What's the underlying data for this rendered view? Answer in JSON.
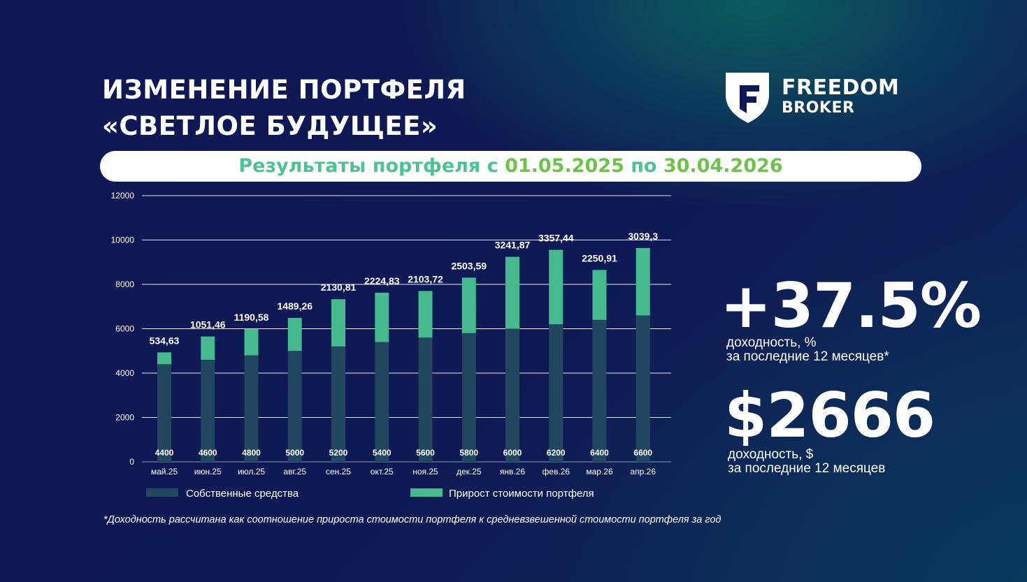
{
  "header": {
    "title_line1": "ИЗМЕНЕНИЕ ПОРТФЕЛЯ",
    "title_line2": "«СВЕТЛОЕ БУДУЩЕЕ»"
  },
  "logo": {
    "line1": "FREEDOM",
    "line2": "BROKER"
  },
  "banner": {
    "prefix": "Результаты портфеля с ",
    "date_from": "01.05.2025",
    "middle": " по ",
    "date_to": "30.04.2026"
  },
  "kpi": {
    "pct_value": "+37.5%",
    "pct_caption_line1": "доходность, %",
    "pct_caption_line2": "за последние 12 месяцев*",
    "usd_value": "$2666",
    "usd_caption_line1": "доходность, $",
    "usd_caption_line2": "за последние 12 месяцев"
  },
  "footnote": "*Доходность рассчитана как соотношение прироста стоимости портфеля к средневзвешенной стоимости портфеля за год",
  "colors": {
    "own_funds": "#22465f",
    "growth": "#47b98f",
    "banner_text": "#4fc195",
    "banner_accent": "#6dc24a"
  },
  "chart_data": {
    "type": "bar",
    "stacked": true,
    "categories": [
      "май.25",
      "июн.25",
      "июл.25",
      "авг.25",
      "сен.25",
      "окт.25",
      "ноя.25",
      "дек.25",
      "янв.26",
      "фев.26",
      "мар.26",
      "апр.26"
    ],
    "series": [
      {
        "name": "Собственные средства",
        "values": [
          4400,
          4600,
          4800,
          5000,
          5200,
          5400,
          5600,
          5800,
          6000,
          6200,
          6400,
          6600
        ],
        "labels": [
          "4400",
          "4600",
          "4800",
          "5000",
          "5200",
          "5400",
          "5600",
          "5800",
          "6000",
          "6200",
          "6400",
          "6600"
        ]
      },
      {
        "name": "Прирост стоимости портфеля",
        "values": [
          534.63,
          1051.46,
          1190.58,
          1489.26,
          2130.81,
          2224.83,
          2103.72,
          2503.59,
          3241.87,
          3357.44,
          2250.91,
          3039.3
        ],
        "labels": [
          "534,63",
          "1051,46",
          "1190,58",
          "1489,26",
          "2130,81",
          "2224,83",
          "2103,72",
          "2503,59",
          "3241,87",
          "3357,44",
          "2250,91",
          "3039,3"
        ]
      }
    ],
    "yticks": [
      "0",
      "2000",
      "4000",
      "6000",
      "8000",
      "10000",
      "12000"
    ],
    "ylim": [
      0,
      12000
    ],
    "grid": true,
    "legend_position": "bottom"
  }
}
